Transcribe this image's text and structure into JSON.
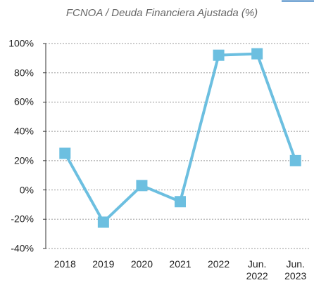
{
  "chart_data": {
    "type": "line",
    "title": "FCNOA / Deuda Financiera Ajustada (%)",
    "categories": [
      "2018",
      "2019",
      "2020",
      "2021",
      "2022",
      "Jun. 2022",
      "Jun. 2023"
    ],
    "series": [
      {
        "name": "FCNOA / Deuda Financiera Ajustada",
        "color": "#6cbfe0",
        "values": [
          25,
          -22,
          3,
          -8,
          92,
          93,
          20
        ]
      }
    ],
    "ylim": [
      -40,
      100
    ],
    "yticks": [
      {
        "value": -40,
        "label": "-40%"
      },
      {
        "value": -20,
        "label": "-20%"
      },
      {
        "value": 0,
        "label": "0%"
      },
      {
        "value": 20,
        "label": "20%"
      },
      {
        "value": 40,
        "label": "40%"
      },
      {
        "value": 60,
        "label": "60%"
      },
      {
        "value": 80,
        "label": "80%"
      },
      {
        "value": 100,
        "label": "100%"
      }
    ],
    "grid": true
  }
}
